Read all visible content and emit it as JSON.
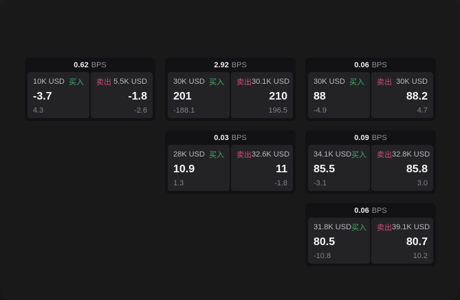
{
  "labels": {
    "bps_unit": "BPS",
    "buy": "买入",
    "sell": "卖出"
  },
  "colors": {
    "page_background": "#19191a",
    "card_background": "#121214",
    "panel_background": "#232326",
    "buy_green": "#3fae68",
    "sell_red": "#cf4d72"
  },
  "cards": [
    {
      "bps": "0.62",
      "buy": {
        "size": "10K USD",
        "price": "-3.7",
        "sub": "4.3"
      },
      "sell": {
        "size": "5.5K USD",
        "price": "-1.8",
        "sub": "-2.6"
      }
    },
    {
      "bps": "2.92",
      "buy": {
        "size": "30K USD",
        "price": "201",
        "sub": "-188.1"
      },
      "sell": {
        "size": "30.1K USD",
        "price": "210",
        "sub": "196.5"
      }
    },
    {
      "bps": "0.06",
      "buy": {
        "size": "30K USD",
        "price": "88",
        "sub": "-4.9"
      },
      "sell": {
        "size": "30K USD",
        "price": "88.2",
        "sub": "4.7"
      }
    },
    {
      "bps": "0.03",
      "buy": {
        "size": "28K USD",
        "price": "10.9",
        "sub": "1.3"
      },
      "sell": {
        "size": "32.6K USD",
        "price": "11",
        "sub": "-1.8"
      }
    },
    {
      "bps": "0.09",
      "buy": {
        "size": "34.1K USD",
        "price": "85.5",
        "sub": "-3.1"
      },
      "sell": {
        "size": "32.8K USD",
        "price": "85.8",
        "sub": "3.0"
      }
    },
    {
      "bps": "0.06",
      "buy": {
        "size": "31.8K USD",
        "price": "80.5",
        "sub": "-10.8"
      },
      "sell": {
        "size": "39.1K USD",
        "price": "80.7",
        "sub": "10.2"
      }
    }
  ]
}
